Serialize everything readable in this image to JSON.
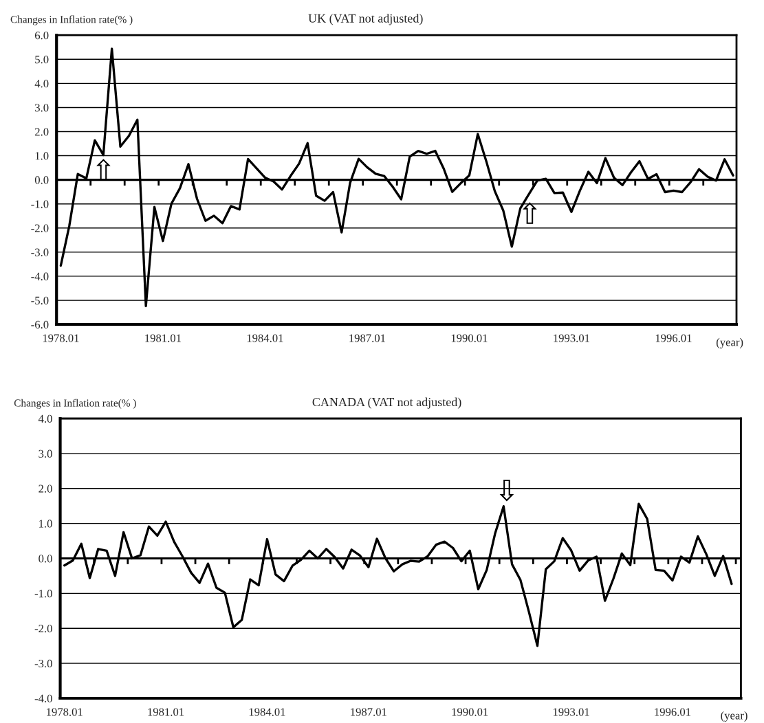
{
  "chart_data": [
    {
      "type": "line",
      "title": "UK (VAT not adjusted)",
      "ylabel": "Changes in Inflation rate(% )",
      "xlabel": "(year)",
      "categories": [
        "1978.01",
        null,
        null,
        null,
        null,
        null,
        null,
        null,
        null,
        null,
        null,
        null,
        "1981.01",
        null,
        null,
        null,
        null,
        null,
        null,
        null,
        null,
        null,
        null,
        null,
        "1984.01",
        null,
        null,
        null,
        null,
        null,
        null,
        null,
        null,
        null,
        null,
        null,
        "1987.01",
        null,
        null,
        null,
        null,
        null,
        null,
        null,
        null,
        null,
        null,
        null,
        "1990.01",
        null,
        null,
        null,
        null,
        null,
        null,
        null,
        null,
        null,
        null,
        null,
        "1993.01",
        null,
        null,
        null,
        null,
        null,
        null,
        null,
        null,
        null,
        null,
        null,
        "1996.01",
        null,
        null,
        null,
        null,
        null,
        null,
        null
      ],
      "series": [
        {
          "color": "#000000",
          "line_style": "solid",
          "values": [
            -3.56,
            -1.91,
            0.24,
            0.06,
            1.64,
            1.03,
            5.44,
            1.38,
            1.82,
            2.49,
            -5.24,
            -1.13,
            -2.54,
            -0.99,
            -0.35,
            0.65,
            -0.78,
            -1.7,
            -1.49,
            -1.8,
            -1.09,
            -1.23,
            0.86,
            0.48,
            0.09,
            -0.07,
            -0.4,
            0.16,
            0.67,
            1.52,
            -0.66,
            -0.87,
            -0.51,
            -2.18,
            -0.12,
            0.87,
            0.52,
            0.25,
            0.16,
            -0.29,
            -0.81,
            0.96,
            1.2,
            1.08,
            1.2,
            0.46,
            -0.5,
            -0.14,
            0.18,
            1.9,
            0.77,
            -0.47,
            -1.28,
            -2.77,
            -1.18,
            -0.6,
            -0.03,
            0.04,
            -0.55,
            -0.53,
            -1.33,
            -0.45,
            0.33,
            -0.14,
            0.9,
            0.09,
            -0.22,
            0.31,
            0.77,
            0.04,
            0.23,
            -0.51,
            -0.45,
            -0.51,
            -0.1,
            0.44,
            0.13,
            -0.03,
            0.85,
            0.18
          ]
        }
      ],
      "ylim": [
        -6,
        6
      ],
      "yticks": [
        {
          "value": -6,
          "label": "-6.0"
        },
        {
          "value": -5,
          "label": "-5.0"
        },
        {
          "value": -4,
          "label": "-4.0"
        },
        {
          "value": -3,
          "label": "-3.0"
        },
        {
          "value": -2,
          "label": "-2.0"
        },
        {
          "value": -1,
          "label": "-1.0"
        },
        {
          "value": 0,
          "label": "0.0"
        },
        {
          "value": 1,
          "label": "1.0"
        },
        {
          "value": 2,
          "label": "2.0"
        },
        {
          "value": 3,
          "label": "3.0"
        },
        {
          "value": 4,
          "label": "4.0"
        },
        {
          "value": 5,
          "label": "5.0"
        },
        {
          "value": 6,
          "label": "6.0"
        }
      ],
      "grid": "y",
      "ref_lines": [
        {
          "axis": "y",
          "value": 0,
          "color": "#000000"
        }
      ],
      "annotations": [
        "⇧",
        "⇧"
      ]
    },
    {
      "type": "line",
      "title": "CANADA (VAT not adjusted)",
      "ylabel": "Changes in Inflation rate(% )",
      "xlabel": "(year)",
      "categories": [
        "1978.01",
        null,
        null,
        null,
        null,
        null,
        null,
        null,
        null,
        null,
        null,
        null,
        "1981.01",
        null,
        null,
        null,
        null,
        null,
        null,
        null,
        null,
        null,
        null,
        null,
        "1984.01",
        null,
        null,
        null,
        null,
        null,
        null,
        null,
        null,
        null,
        null,
        null,
        "1987.01",
        null,
        null,
        null,
        null,
        null,
        null,
        null,
        null,
        null,
        null,
        null,
        "1990.01",
        null,
        null,
        null,
        null,
        null,
        null,
        null,
        null,
        null,
        null,
        null,
        "1993.01",
        null,
        null,
        null,
        null,
        null,
        null,
        null,
        null,
        null,
        null,
        null,
        "1996.01",
        null,
        null,
        null,
        null,
        null,
        null,
        null
      ],
      "series": [
        {
          "color": "#000000",
          "line_style": "solid",
          "values": [
            -0.2,
            -0.06,
            0.42,
            -0.56,
            0.27,
            0.22,
            -0.5,
            0.75,
            0.0,
            0.09,
            0.91,
            0.65,
            1.05,
            0.47,
            0.05,
            -0.41,
            -0.7,
            -0.15,
            -0.84,
            -0.98,
            -1.97,
            -1.76,
            -0.6,
            -0.77,
            0.55,
            -0.46,
            -0.65,
            -0.21,
            -0.04,
            0.22,
            0.0,
            0.27,
            0.04,
            -0.29,
            0.25,
            0.08,
            -0.25,
            0.56,
            0.01,
            -0.37,
            -0.17,
            -0.07,
            -0.09,
            0.06,
            0.39,
            0.48,
            0.3,
            -0.08,
            0.22,
            -0.88,
            -0.33,
            0.72,
            1.49,
            -0.17,
            -0.62,
            -1.53,
            -2.5,
            -0.31,
            -0.08,
            0.58,
            0.23,
            -0.35,
            -0.06,
            0.05,
            -1.21,
            -0.58,
            0.14,
            -0.19,
            1.56,
            1.13,
            -0.33,
            -0.35,
            -0.63,
            0.05,
            -0.12,
            0.63,
            0.12,
            -0.5,
            0.07,
            -0.73
          ]
        }
      ],
      "ylim": [
        -4,
        4
      ],
      "yticks": [
        {
          "value": -4,
          "label": "-4.0"
        },
        {
          "value": -3,
          "label": "-3.0"
        },
        {
          "value": -2,
          "label": "-2.0"
        },
        {
          "value": -1,
          "label": "-1.0"
        },
        {
          "value": 0,
          "label": "0.0"
        },
        {
          "value": 1,
          "label": "1.0"
        },
        {
          "value": 2,
          "label": "2.0"
        },
        {
          "value": 3,
          "label": "3.0"
        },
        {
          "value": 4,
          "label": "4.0"
        }
      ],
      "grid": "y",
      "ref_lines": [
        {
          "axis": "y",
          "value": 0,
          "color": "#000000"
        }
      ],
      "annotations": [
        "⇩"
      ]
    }
  ]
}
